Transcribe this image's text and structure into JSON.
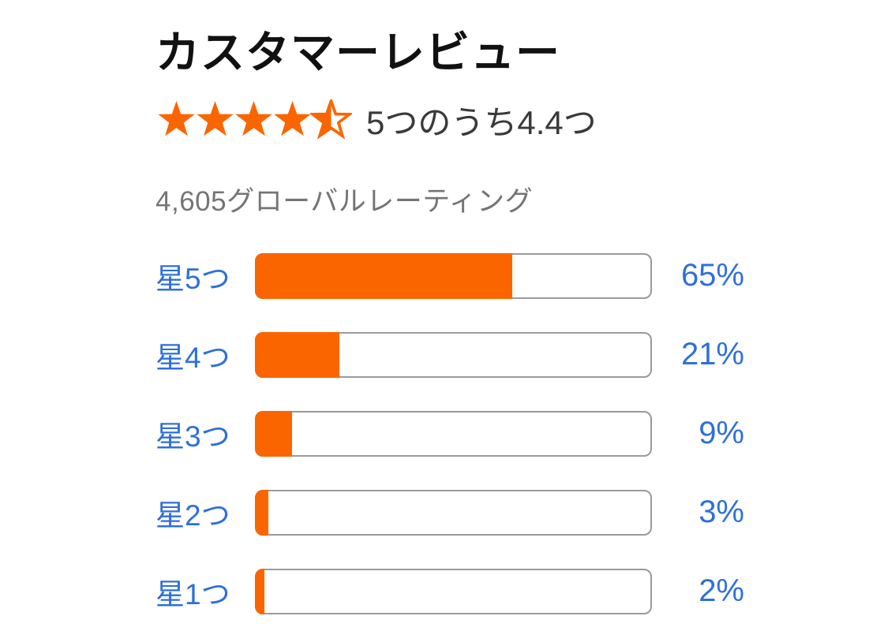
{
  "colors": {
    "accent_orange": "#fb6500",
    "link_blue": "#2f70d8",
    "bar_border": "#9a9a9a",
    "title_text": "#111111",
    "body_text": "#3a3a3a",
    "muted_text": "#757575"
  },
  "header": {
    "title": "カスタマーレビュー",
    "rating_value": "4.4",
    "rating_out_of": "5",
    "rating_label": "5つのうち4.4つ",
    "stars": [
      "full",
      "full",
      "full",
      "full",
      "half"
    ],
    "ratings_count_label": "4,605グローバルレーティング"
  },
  "histogram": {
    "rows": [
      {
        "label": "星5つ",
        "percent": 65,
        "percent_label": "65%"
      },
      {
        "label": "星4つ",
        "percent": 21,
        "percent_label": "21%"
      },
      {
        "label": "星3つ",
        "percent": 9,
        "percent_label": "9%"
      },
      {
        "label": "星2つ",
        "percent": 3,
        "percent_label": "3%"
      },
      {
        "label": "星1つ",
        "percent": 2,
        "percent_label": "2%"
      }
    ]
  },
  "chart_data": {
    "type": "bar",
    "title": "カスタマーレビュー",
    "categories": [
      "星5つ",
      "星4つ",
      "星3つ",
      "星2つ",
      "星1つ"
    ],
    "values": [
      65,
      21,
      9,
      3,
      2
    ],
    "unit": "%",
    "average_rating": 4.4,
    "max_rating": 5,
    "total_ratings": "4,605",
    "xlim": [
      0,
      100
    ],
    "orientation": "horizontal",
    "bar_color": "#fb6500"
  }
}
